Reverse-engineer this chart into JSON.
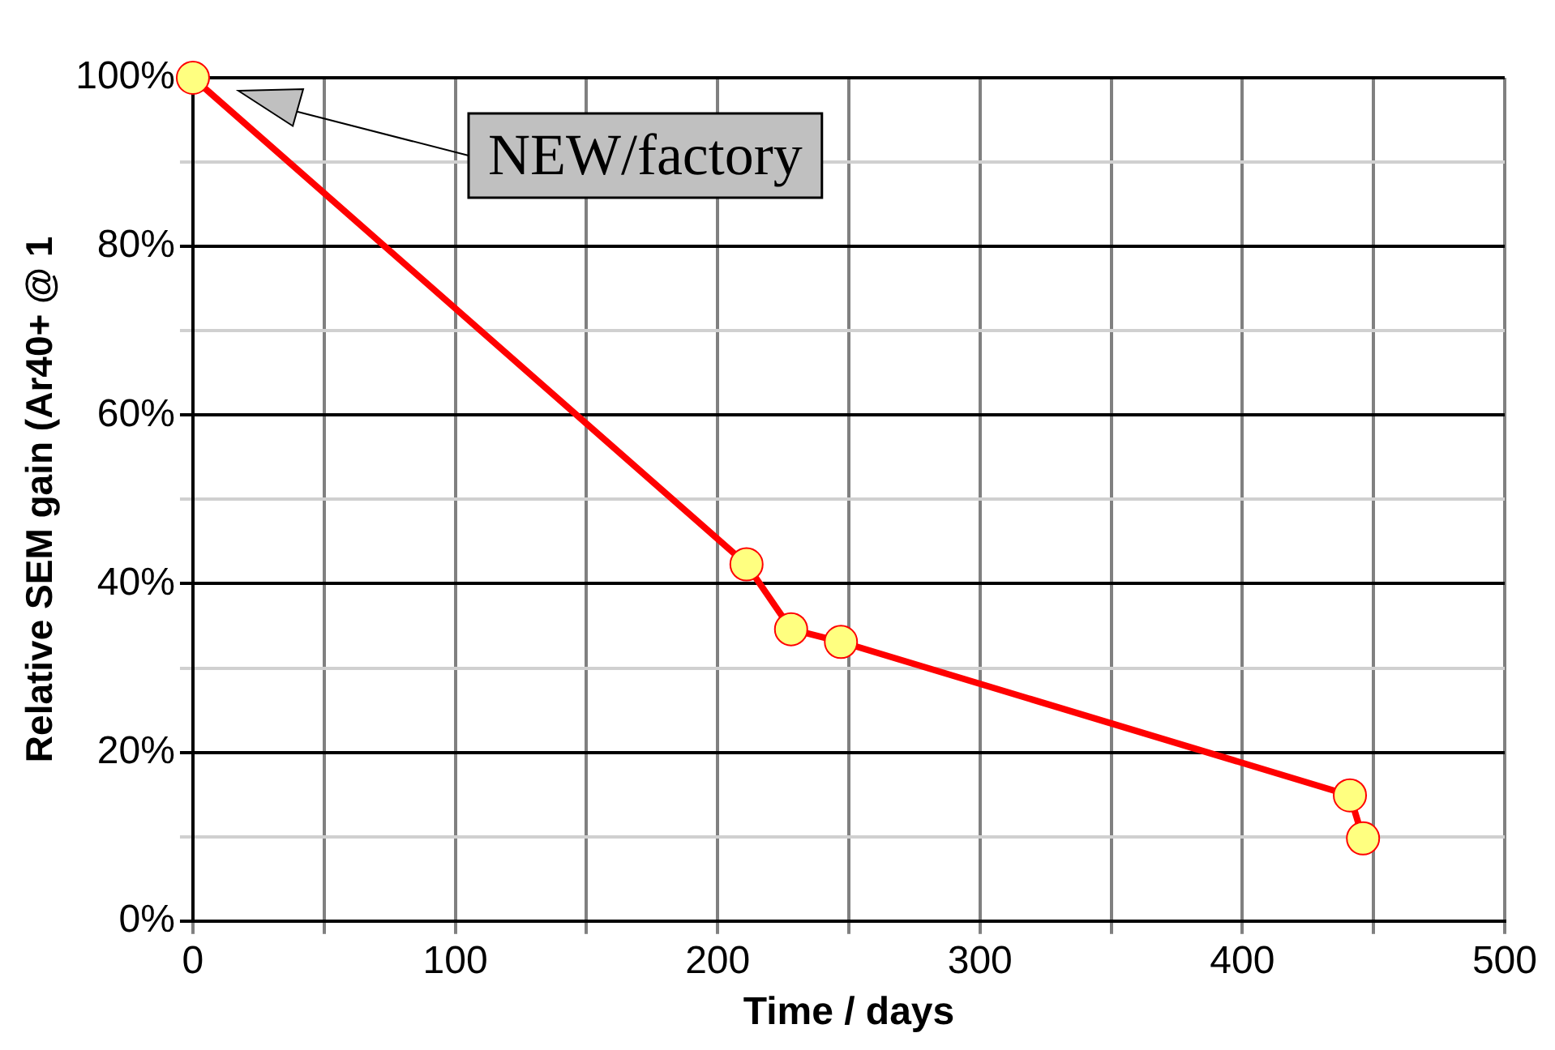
{
  "chart_data": {
    "type": "line",
    "xlabel": "Time / days",
    "ylabel": "Relative SEM gain (Ar40+ @ 1",
    "x": [
      0,
      211,
      228,
      247,
      441,
      446
    ],
    "series": [
      {
        "color": "#ff0000",
        "values": [
          100,
          42.3,
          34.6,
          33.1,
          14.9,
          9.8
        ]
      }
    ],
    "xlim": [
      0,
      500
    ],
    "xticks": [
      0,
      {
        "value": 50,
        "label": null
      },
      100,
      {
        "value": 150,
        "label": null
      },
      200,
      {
        "value": 250,
        "label": null
      },
      300,
      {
        "value": 350,
        "label": null
      },
      400,
      {
        "value": 450,
        "label": null
      },
      500
    ],
    "ylim": [
      0,
      100
    ],
    "yticks": [
      {
        "value": 0,
        "label": "0%"
      },
      {
        "value": 10,
        "label": null
      },
      {
        "value": 20,
        "label": "20%"
      },
      {
        "value": 30,
        "label": null
      },
      {
        "value": 40,
        "label": "40%"
      },
      {
        "value": 50,
        "label": null
      },
      {
        "value": 60,
        "label": "60%"
      },
      {
        "value": 70,
        "label": null
      },
      {
        "value": 80,
        "label": "80%"
      },
      {
        "value": 90,
        "label": null
      },
      {
        "value": 100,
        "label": "100%"
      }
    ],
    "grid": true,
    "marker": "circle",
    "line_style": "solid",
    "annotations": [
      "NEW/factory"
    ]
  }
}
